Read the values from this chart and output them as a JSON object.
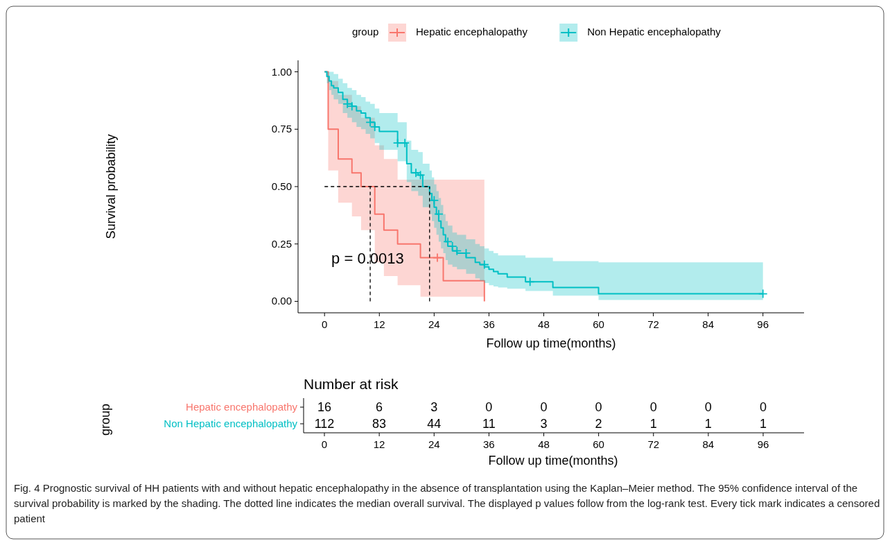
{
  "chart_data": [
    {
      "type": "step",
      "xlabel": "Follow up time(months)",
      "ylabel": "Survival probability",
      "legend_title": "group",
      "legend": "top",
      "line_style": "solid",
      "xlim": [
        -5.8,
        105
      ],
      "xticks": [
        0,
        12,
        24,
        36,
        48,
        60,
        72,
        84,
        96
      ],
      "ylim": [
        -0.05,
        1.05
      ],
      "yticks": [
        {
          "value": 0,
          "label": "0.00"
        },
        {
          "value": 0.25,
          "label": "0.25"
        },
        {
          "value": 0.5,
          "label": "0.50"
        },
        {
          "value": 0.75,
          "label": "0.75"
        },
        {
          "value": 1,
          "label": "1.00"
        }
      ],
      "series": [
        {
          "name": "Hepatic encephalopathy",
          "color": "#f8766d",
          "type": "step",
          "x": [
            0,
            0.8,
            3,
            6,
            8,
            11,
            13,
            16,
            21,
            26,
            35
          ],
          "values": [
            1,
            0.75,
            0.62,
            0.56,
            0.5,
            0.38,
            0.31,
            0.25,
            0.19,
            0.09,
            0
          ],
          "lower": [
            1,
            0.57,
            0.43,
            0.37,
            0.31,
            0.17,
            0.11,
            0.07,
            0.02,
            0.02,
            0.02
          ],
          "upper": [
            1,
            0.96,
            0.9,
            0.85,
            0.8,
            0.68,
            0.62,
            0.53,
            0.53,
            0.53,
            0.53
          ]
        },
        {
          "name": "Non Hepatic encephalopathy",
          "color": "#00bfc4",
          "type": "step",
          "x": [
            0,
            0.5,
            1,
            1.5,
            2,
            3,
            4,
            5,
            6,
            7,
            8,
            9,
            10,
            11,
            12,
            16,
            18,
            19,
            20.5,
            21.5,
            23,
            23.5,
            24,
            24.5,
            25,
            25.5,
            26,
            26.5,
            27,
            28,
            29,
            31,
            33,
            34,
            35,
            36,
            37,
            38,
            40,
            44,
            50,
            60,
            96
          ],
          "values": [
            1,
            0.98,
            0.96,
            0.94,
            0.93,
            0.91,
            0.88,
            0.86,
            0.85,
            0.83,
            0.82,
            0.8,
            0.78,
            0.76,
            0.74,
            0.69,
            0.6,
            0.56,
            0.55,
            0.5,
            0.47,
            0.44,
            0.41,
            0.38,
            0.35,
            0.32,
            0.29,
            0.26,
            0.24,
            0.22,
            0.21,
            0.19,
            0.17,
            0.16,
            0.15,
            0.14,
            0.13,
            0.12,
            0.106,
            0.085,
            0.06,
            0.033,
            0.033
          ],
          "upper": [
            1,
            1,
            1,
            1,
            0.99,
            0.97,
            0.95,
            0.93,
            0.92,
            0.9,
            0.89,
            0.87,
            0.86,
            0.84,
            0.82,
            0.78,
            0.7,
            0.66,
            0.65,
            0.6,
            0.57,
            0.54,
            0.51,
            0.48,
            0.45,
            0.42,
            0.38,
            0.35,
            0.33,
            0.3,
            0.29,
            0.27,
            0.25,
            0.24,
            0.23,
            0.22,
            0.21,
            0.2,
            0.2,
            0.19,
            0.175,
            0.17,
            0.17
          ],
          "lower": [
            1,
            0.95,
            0.92,
            0.9,
            0.88,
            0.86,
            0.82,
            0.8,
            0.78,
            0.76,
            0.75,
            0.73,
            0.71,
            0.69,
            0.66,
            0.61,
            0.52,
            0.48,
            0.46,
            0.41,
            0.38,
            0.35,
            0.32,
            0.29,
            0.26,
            0.23,
            0.21,
            0.18,
            0.16,
            0.15,
            0.14,
            0.12,
            0.1,
            0.09,
            0.08,
            0.07,
            0.065,
            0.06,
            0.055,
            0.045,
            0.025,
            0.006,
            0.006
          ]
        },
        {
          "type": "scatter",
          "marker": "cross",
          "color": "#f8766d",
          "x": [
            24.7
          ],
          "values": [
            0.19
          ]
        },
        {
          "type": "scatter",
          "marker": "cross",
          "color": "#00bfc4",
          "x": [
            5,
            6,
            10,
            11,
            16,
            17.6,
            20,
            21,
            24,
            25,
            27,
            28,
            29,
            31,
            35,
            45,
            96
          ],
          "values": [
            0.86,
            0.85,
            0.78,
            0.76,
            0.69,
            0.69,
            0.56,
            0.55,
            0.44,
            0.38,
            0.26,
            0.24,
            0.22,
            0.21,
            0.16,
            0.085,
            0.033
          ]
        }
      ],
      "ref_lines": [
        {
          "axis": "y",
          "value": 0.5,
          "color": "#000000",
          "line_style": "dashed"
        },
        {
          "axis": "x",
          "value": 10,
          "color": "#000000",
          "line_style": "dashed"
        },
        {
          "axis": "x",
          "value": 23,
          "color": "#000000",
          "line_style": "dashed"
        }
      ],
      "annotations": [
        "p = 0.0013",
        "Fig. 4  Prognostic survival of HH patients with and without hepatic encephalopathy in the absence of transplantation using the Kaplan–Meier method. The 95% confidence interval of the survival probability is marked by the shading. The dotted line indicates the median overall survival. The displayed p values follow from the log-rank test. Every tick mark indicates a censored patient"
      ]
    },
    {
      "type": "heatmap",
      "title": "Number at risk",
      "xlabel": "Follow up time(months)",
      "ylabel": "group",
      "data_labels": true,
      "categories": [
        "0",
        "12",
        "24",
        "36",
        "48",
        "60",
        "72",
        "84",
        "96"
      ],
      "y_categories": [
        "Hepatic encephalopathy",
        "Non Hepatic encephalopathy"
      ],
      "colors": [
        "#f8766d",
        "#00bfc4"
      ],
      "cells": [
        [
          16,
          6,
          3,
          0,
          0,
          0,
          0,
          0,
          0
        ],
        [
          112,
          83,
          44,
          11,
          3,
          2,
          1,
          1,
          1
        ]
      ]
    }
  ]
}
